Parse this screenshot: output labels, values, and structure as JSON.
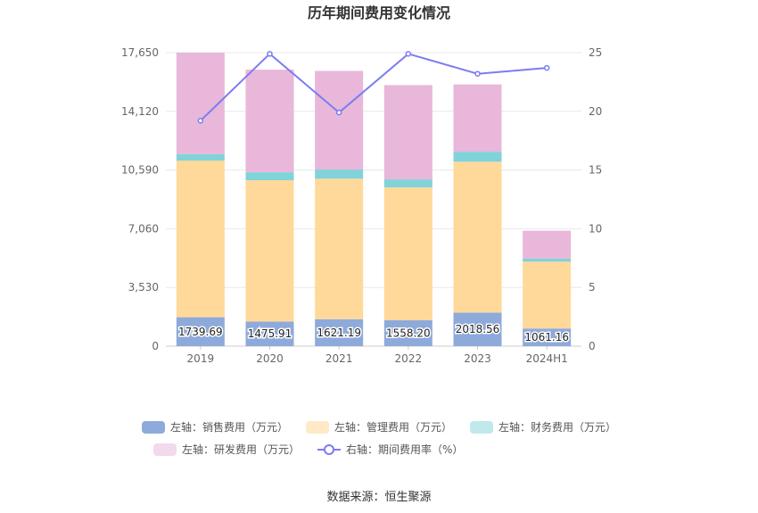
{
  "chart_data": {
    "type": "bar",
    "title": "历年期间费用变化情况",
    "categories": [
      "2019",
      "2020",
      "2021",
      "2022",
      "2023",
      "2024H1"
    ],
    "left_axis": {
      "ticks": [
        "0",
        "3,530",
        "7,060",
        "10,590",
        "14,120",
        "17,650"
      ],
      "ylim": [
        0,
        17650
      ]
    },
    "right_axis": {
      "ticks": [
        "0",
        "5",
        "10",
        "15",
        "20",
        "25"
      ],
      "ylim": [
        0,
        25
      ]
    },
    "series": [
      {
        "name": "左轴：销售费用（万元）",
        "color": "#8eaadb",
        "values": [
          1739.69,
          1475.91,
          1621.19,
          1558.2,
          2018.56,
          1061.16
        ],
        "labels": [
          "1739.69",
          "1475.91",
          "1621.19",
          "1558.20",
          "2018.56",
          "1061.16"
        ]
      },
      {
        "name": "左轴：管理费用（万元）",
        "color": "#ffd99a",
        "values": [
          9420,
          8500,
          8450,
          7990,
          9070,
          4020
        ]
      },
      {
        "name": "左轴：财务费用（万元）",
        "color": "#7fd3d9",
        "values": [
          380,
          480,
          550,
          480,
          600,
          180
        ]
      },
      {
        "name": "左轴：研发费用（万元）",
        "color": "#e8b7d9",
        "values": [
          6110,
          6170,
          5930,
          5670,
          4050,
          1680
        ]
      }
    ],
    "line": {
      "name": "右轴：期间费用率（%）",
      "color": "#7b7cf2",
      "values": [
        19.2,
        24.9,
        19.9,
        24.9,
        23.2,
        23.7
      ]
    },
    "legend_position": "bottom",
    "source": "数据来源：恒生聚源"
  }
}
